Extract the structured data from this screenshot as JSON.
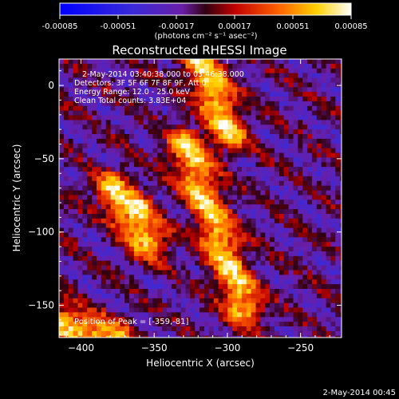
{
  "chart_data": {
    "type": "heatmap",
    "title": "Reconstructed RHESSI Image",
    "xlabel": "Heliocentric X (arcsec)",
    "ylabel": "Heliocentric Y (arcsec)",
    "xlim": [
      -415,
      -222
    ],
    "ylim": [
      -172,
      18
    ],
    "xticks": [
      -400,
      -350,
      -300,
      -250
    ],
    "yticks": [
      0,
      -50,
      -100,
      -150
    ],
    "colorbar": {
      "ticks": [
        "-0.00085",
        "-0.00051",
        "-0.00017",
        "0.00017",
        "0.00051",
        "0.00085"
      ],
      "range": [
        -0.00085,
        0.00085
      ],
      "units": "(photons cm⁻² s⁻¹ asec⁻²)",
      "colormap": [
        "#0000ff",
        "#2a2ad0",
        "#6020a8",
        "#a01a20",
        "#ff0000",
        "#ff7f00",
        "#ffd000",
        "#ffffff"
      ]
    },
    "annotations": [
      "2-May-2014 03:40:38.000 to 03:46:38.000",
      "Detectors: 3F 5F 6F 7F 8F 9F, Att 0",
      "Energy Range: 12.0 - 25.0 keV",
      "Clean    Total counts: 3.83E+04"
    ],
    "peak_label": "Position of Peak = [-359,-81]",
    "peak": [
      -359,
      -81
    ],
    "bright_ridges": [
      {
        "from": [
          -330,
          -40
        ],
        "to": [
          -290,
          -150
        ]
      },
      {
        "from": [
          -380,
          -70
        ],
        "to": [
          -355,
          -105
        ]
      },
      {
        "from": [
          -300,
          -30
        ],
        "to": [
          -320,
          18
        ]
      },
      {
        "from": [
          -415,
          -160
        ],
        "to": [
          -380,
          -172
        ]
      }
    ]
  },
  "footer": {
    "timestamp": "2-May-2014 00:45"
  }
}
